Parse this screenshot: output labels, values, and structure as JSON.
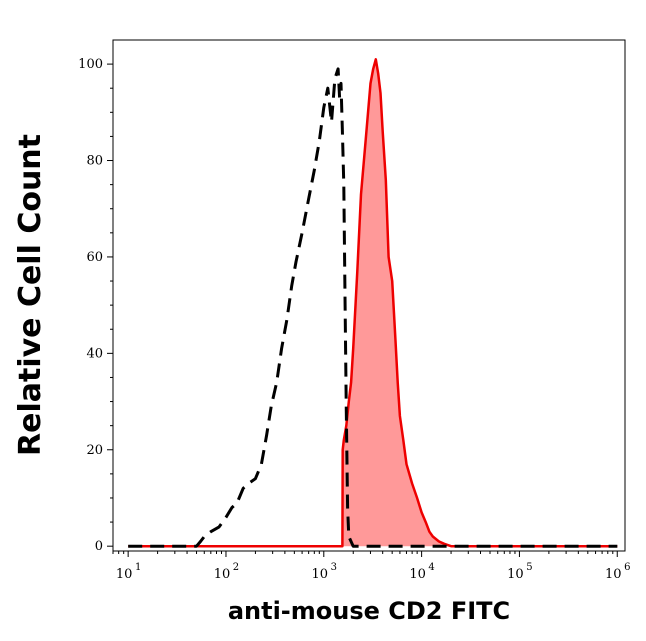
{
  "chart_data": {
    "type": "area",
    "xlabel": "anti-mouse CD2 FITC",
    "ylabel": "Relative Cell Count",
    "x_scale": "log",
    "xlim": [
      7,
      1200000
    ],
    "ylim": [
      -1,
      105
    ],
    "x_ticks": [
      {
        "base": "10",
        "exp": "1",
        "value": 10
      },
      {
        "base": "10",
        "exp": "2",
        "value": 100
      },
      {
        "base": "10",
        "exp": "3",
        "value": 1000
      },
      {
        "base": "10",
        "exp": "4",
        "value": 10000
      },
      {
        "base": "10",
        "exp": "5",
        "value": 100000
      },
      {
        "base": "10",
        "exp": "6",
        "value": 1000000
      }
    ],
    "y_ticks": [
      "0",
      "20",
      "40",
      "60",
      "80",
      "100"
    ],
    "y_tick_values": [
      0,
      20,
      40,
      60,
      80,
      100
    ],
    "series": [
      {
        "style": "dashed",
        "color": "#000000",
        "fill": "none",
        "x": [
          10,
          50,
          55,
          60,
          70,
          85,
          100,
          115,
          130,
          150,
          170,
          200,
          230,
          260,
          290,
          330,
          370,
          420,
          470,
          520,
          600,
          700,
          800,
          900,
          1000,
          1100,
          1200,
          1300,
          1400,
          1450,
          1500,
          1550,
          1600,
          1650,
          1700,
          1750,
          1800,
          2000,
          2500,
          1000000
        ],
        "y": [
          0,
          0,
          1,
          2,
          3,
          4,
          6,
          8,
          9,
          12,
          13,
          14,
          17,
          23,
          29,
          34,
          41,
          47,
          54,
          59,
          65,
          72,
          78,
          84,
          91,
          95,
          88,
          97,
          99,
          93,
          96,
          86,
          75,
          50,
          28,
          8,
          2,
          0,
          0,
          0
        ]
      },
      {
        "style": "solid",
        "color": "#ee0000",
        "fill": "#ff9999",
        "x": [
          10,
          1550,
          1560,
          1600,
          1700,
          1800,
          1900,
          2000,
          2200,
          2400,
          2700,
          3000,
          3200,
          3400,
          3600,
          3800,
          4000,
          4300,
          4600,
          5000,
          5400,
          5700,
          6000,
          6500,
          7000,
          8000,
          9000,
          10000,
          11000,
          12000,
          13000,
          15000,
          17000,
          20000,
          1000000
        ],
        "y": [
          0,
          0,
          20,
          22,
          25,
          30,
          34,
          41,
          57,
          73,
          85,
          96,
          99,
          101,
          98,
          94,
          86,
          76,
          60,
          55,
          43,
          34,
          27,
          22,
          17,
          13,
          10,
          7,
          5,
          3,
          2,
          1,
          0.5,
          0,
          0
        ]
      }
    ]
  }
}
